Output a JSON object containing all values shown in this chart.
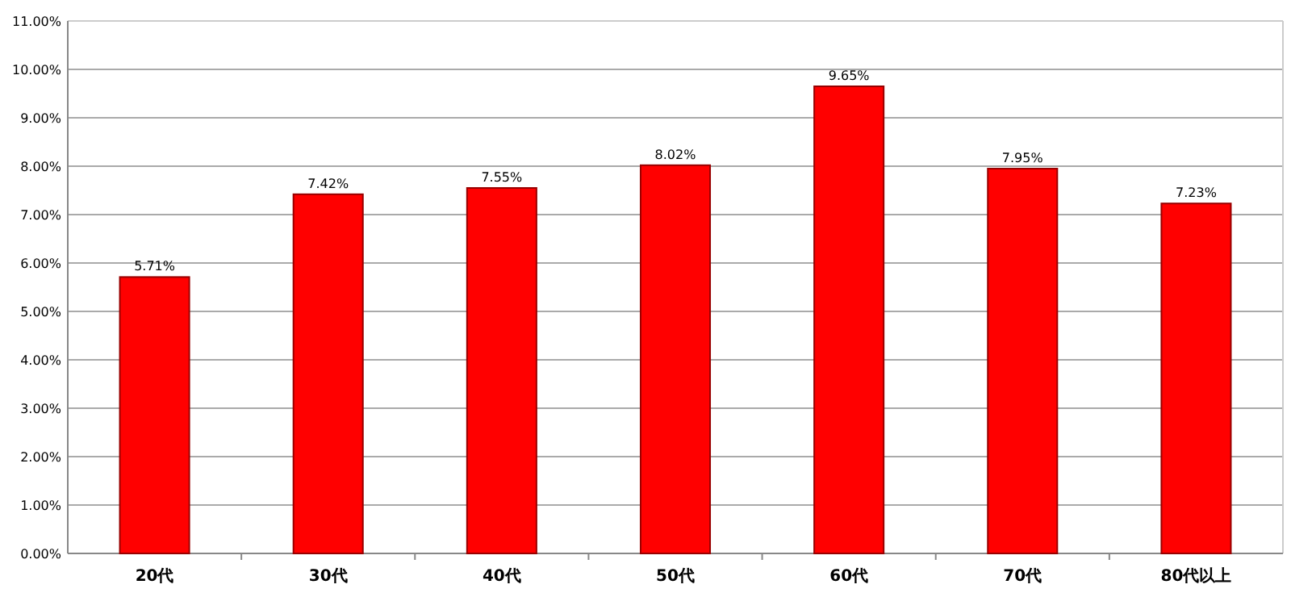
{
  "chart_data": {
    "type": "bar",
    "categories": [
      "20代",
      "30代",
      "40代",
      "50代",
      "60代",
      "70代",
      "80代以上"
    ],
    "values": [
      5.71,
      7.42,
      7.55,
      8.02,
      9.65,
      7.95,
      7.23
    ],
    "value_labels": [
      "5.71%",
      "7.42%",
      "7.55%",
      "8.02%",
      "9.65%",
      "7.95%",
      "7.23%"
    ],
    "color": "#ff0000",
    "ylim": [
      0,
      11
    ],
    "yticks": [
      {
        "value": 0,
        "label": "0.00%"
      },
      {
        "value": 1,
        "label": "1.00%"
      },
      {
        "value": 2,
        "label": "2.00%"
      },
      {
        "value": 3,
        "label": "3.00%"
      },
      {
        "value": 4,
        "label": "4.00%"
      },
      {
        "value": 5,
        "label": "5.00%"
      },
      {
        "value": 6,
        "label": "6.00%"
      },
      {
        "value": 7,
        "label": "7.00%"
      },
      {
        "value": 8,
        "label": "8.00%"
      },
      {
        "value": 9,
        "label": "9.00%"
      },
      {
        "value": 10,
        "label": "10.00%"
      },
      {
        "value": 11,
        "label": "11.00%"
      }
    ],
    "grid": "y"
  }
}
